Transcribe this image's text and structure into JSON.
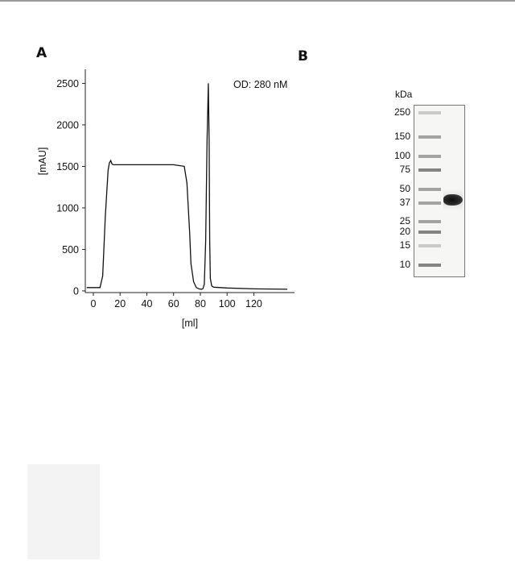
{
  "panel_a_label": "A",
  "panel_b_label": "B",
  "chart_data": [
    {
      "type": "line",
      "panel": "A",
      "title": "",
      "annotation": "OD: 280 nM",
      "xlabel": "[ml]",
      "ylabel": "[mAU]",
      "xlim": [
        -6,
        148
      ],
      "ylim": [
        -20,
        2650
      ],
      "x_ticks": [
        0,
        20,
        40,
        60,
        80,
        100,
        120
      ],
      "y_ticks": [
        0,
        500,
        1000,
        1500,
        2000,
        2500
      ],
      "grid": false,
      "series": [
        {
          "x": [
            -5,
            5,
            7,
            9,
            11,
            12,
            13,
            14,
            15,
            17,
            25,
            40,
            60,
            68,
            70,
            72,
            73,
            75,
            77,
            79,
            81,
            82,
            83,
            84,
            85,
            86,
            86.6,
            87,
            87.5,
            88.5,
            90,
            100,
            120,
            145
          ],
          "y": [
            40,
            40,
            180,
            900,
            1450,
            1540,
            1570,
            1530,
            1520,
            1520,
            1520,
            1520,
            1520,
            1500,
            1300,
            700,
            330,
            110,
            40,
            25,
            20,
            30,
            80,
            600,
            1800,
            2500,
            1800,
            600,
            150,
            60,
            45,
            35,
            25,
            20
          ]
        }
      ]
    },
    {
      "type": "gel",
      "panel": "B",
      "unit_label": "kDa",
      "ladder_labels": [
        "250",
        "150",
        "100",
        "75",
        "50",
        "37",
        "25",
        "20",
        "15",
        "10"
      ],
      "ladder_kda": [
        250,
        150,
        100,
        75,
        50,
        37,
        25,
        20,
        15,
        10
      ],
      "sample_band_kda": 40
    }
  ]
}
